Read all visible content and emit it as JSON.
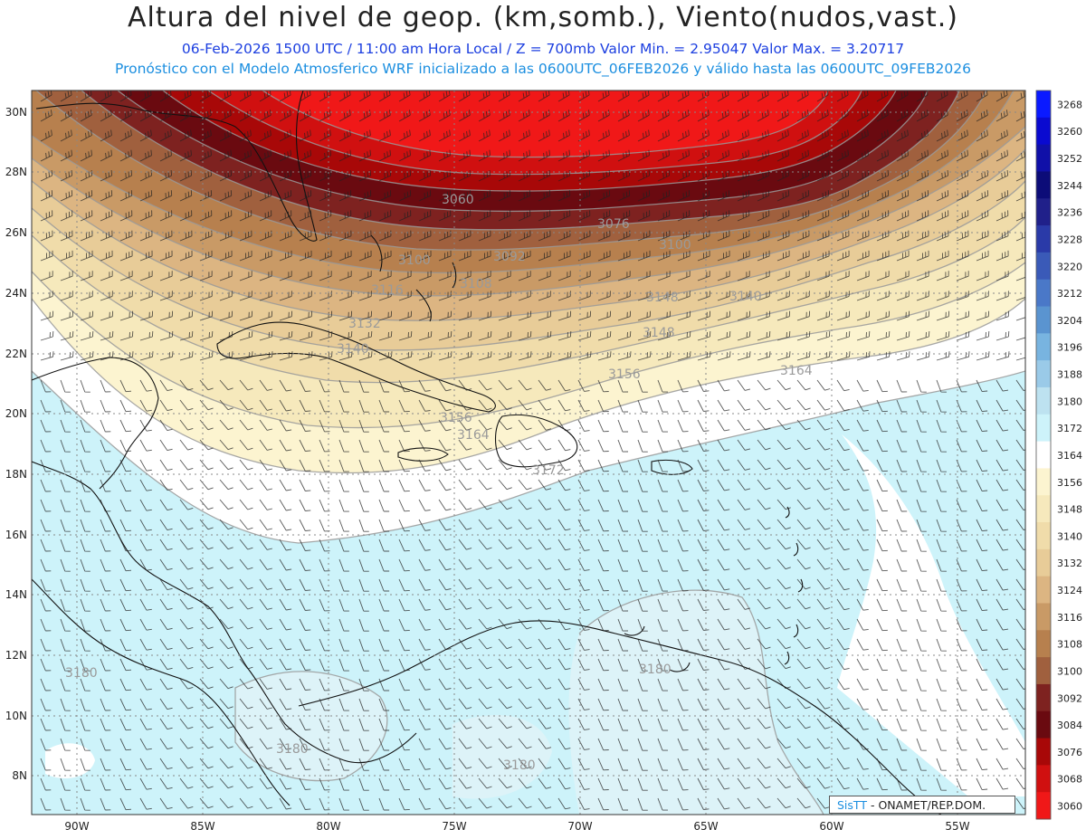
{
  "header": {
    "title": "Altura del nivel de geop. (km,somb.), Viento(nudos,vast.)",
    "line1": "06-Feb-2026  1500 UTC / 11:00 am Hora Local / Z = 700mb    Valor Min. = 2.95047  Valor Max. = 3.20717",
    "line2": "Pronóstico con el Modelo Atmosferico WRF inicializado a las 0600UTC_06FEB2026 y válido hasta las  0600UTC_09FEB2026"
  },
  "axes": {
    "lon_labels": [
      "90W",
      "85W",
      "80W",
      "75W",
      "70W",
      "65W",
      "60W",
      "55W"
    ],
    "lat_labels": [
      "30N",
      "28N",
      "26N",
      "24N",
      "22N",
      "20N",
      "18N",
      "16N",
      "14N",
      "12N",
      "10N",
      "8N"
    ]
  },
  "contour_labels": [
    "3060",
    "3076",
    "3092",
    "3100",
    "3108",
    "3116",
    "3132",
    "3140",
    "3148",
    "3156",
    "3164",
    "3172",
    "3180",
    "3180",
    "3180",
    "3180",
    "3100",
    "3140",
    "3148",
    "3156",
    "3164"
  ],
  "colorbar": {
    "levels": [
      "3268",
      "3260",
      "3252",
      "3244",
      "3236",
      "3228",
      "3220",
      "3212",
      "3204",
      "3196",
      "3188",
      "3180",
      "3172",
      "3164",
      "3156",
      "3148",
      "3140",
      "3132",
      "3124",
      "3116",
      "3108",
      "3100",
      "3092",
      "3084",
      "3076",
      "3068",
      "3060"
    ],
    "colors": [
      "#0a1aff",
      "#0a0ad0",
      "#1010a8",
      "#0c0c78",
      "#20208a",
      "#2a3aa8",
      "#3a5ab8",
      "#4a78c8",
      "#5a94d0",
      "#78b4e0",
      "#9acae8",
      "#bde2f0",
      "#cdf3fa",
      "#ffffff",
      "#fcf4d0",
      "#f6e9bc",
      "#f0dcaa",
      "#e8cc98",
      "#dcb582",
      "#c99a66",
      "#b7804e",
      "#a0603e",
      "#7e2220",
      "#6a0a10",
      "#a80808",
      "#d01010",
      "#f01818"
    ]
  },
  "credit": {
    "brand": "SisTT",
    "text": " - ONAMET/REP.DOM."
  }
}
